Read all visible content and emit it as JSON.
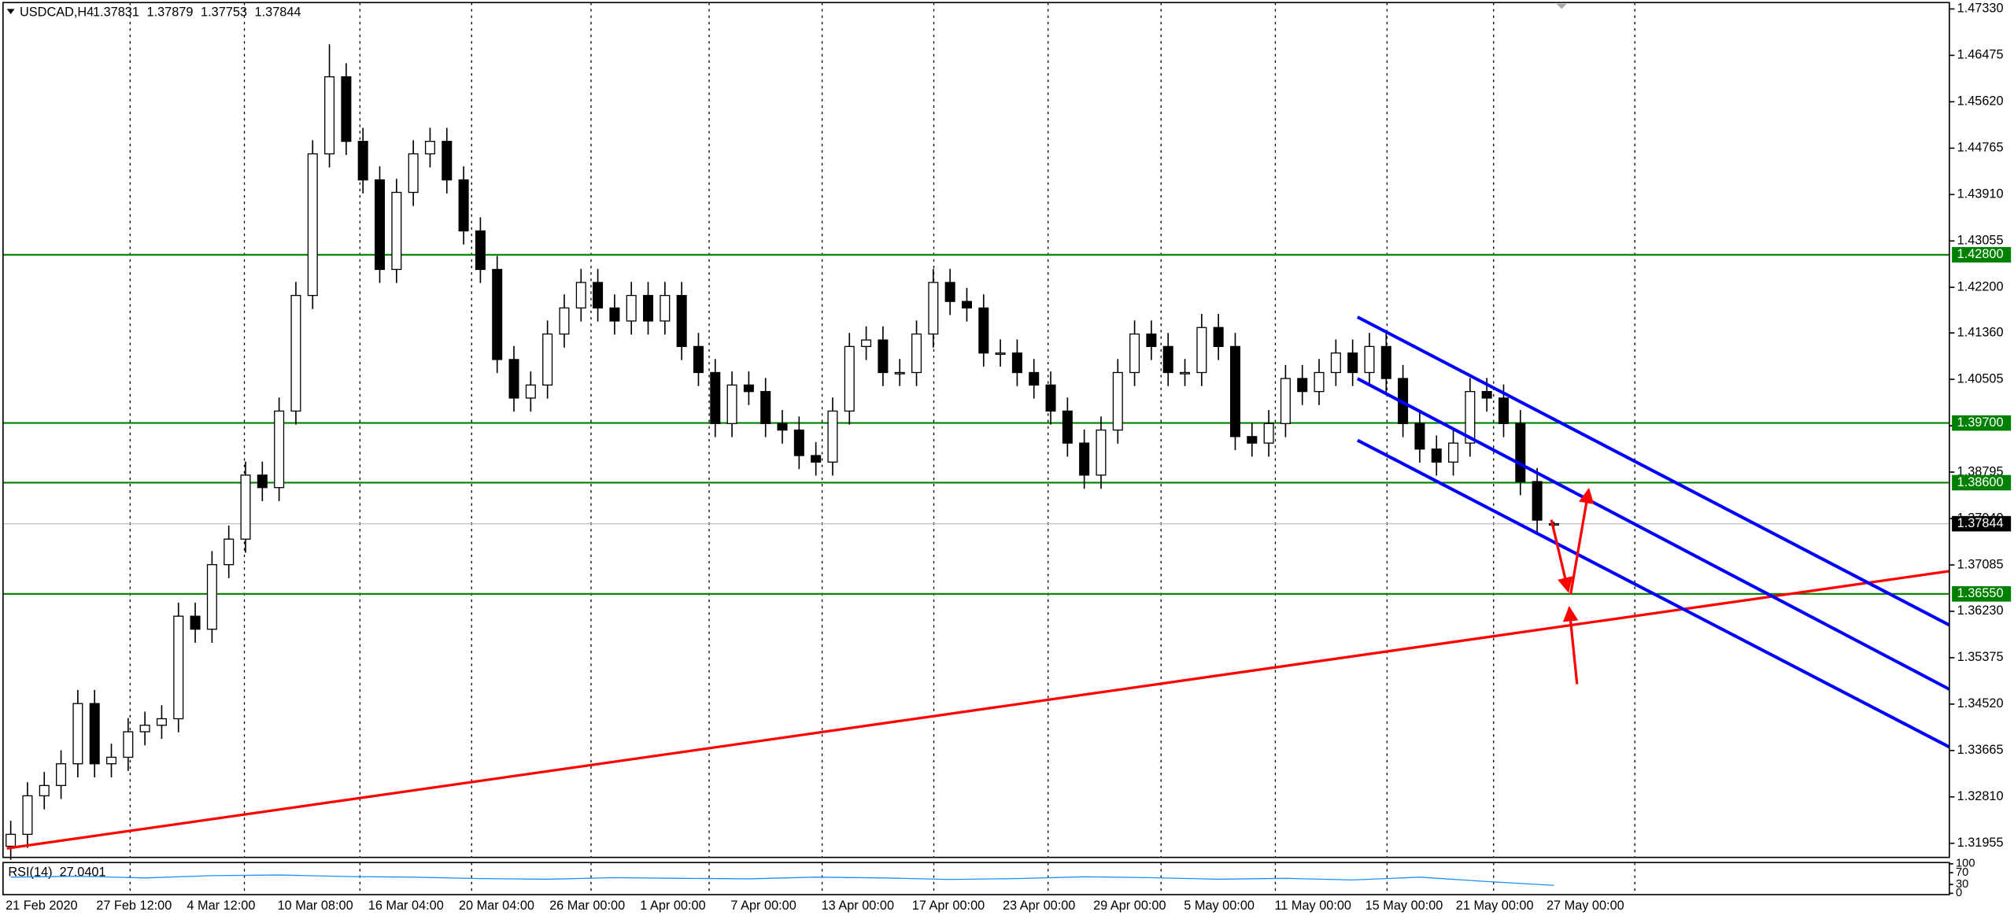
{
  "chart_data": {
    "type": "candlestick",
    "symbol": "USDCAD,H4",
    "open": [
      1.319,
      1.3212,
      1.3283,
      1.3302,
      1.3342,
      1.3453,
      1.3342,
      1.3354,
      1.3401,
      1.3413,
      1.3425,
      1.3614,
      1.359,
      1.3709,
      1.3756,
      1.3874,
      1.3851,
      1.3992,
      1.4205,
      1.4466,
      1.4608,
      1.4489,
      1.4418,
      1.4253,
      1.4395,
      1.4466,
      1.4489,
      1.4418,
      1.4324,
      1.4253,
      1.4087,
      1.4016,
      1.404,
      1.4134,
      1.4182,
      1.4229,
      1.4182,
      1.4158,
      1.4205,
      1.4158,
      1.4205,
      1.4111,
      1.4063,
      1.3969,
      1.404,
      1.4028,
      1.3969,
      1.3957,
      1.391,
      1.3898,
      1.3992,
      1.4111,
      1.4123,
      1.4063,
      1.4063,
      1.4134,
      1.4229,
      1.4194,
      1.4182,
      1.4099,
      1.4099,
      1.4063,
      1.404,
      1.3992,
      1.3933,
      1.3874,
      1.3957,
      1.4063,
      1.4134,
      1.4111,
      1.4063,
      1.4063,
      1.4146,
      1.4111,
      1.3945,
      1.3933,
      1.3969,
      1.4052,
      1.4028,
      1.4063,
      1.4099,
      1.4063,
      1.4111,
      1.4052,
      1.3969,
      1.3922,
      1.3898,
      1.3933,
      1.4028,
      1.4016,
      1.3969,
      1.3862,
      1.37831
    ],
    "high": [
      1.3237,
      1.3308,
      1.3327,
      1.3367,
      1.3478,
      1.3478,
      1.3379,
      1.3426,
      1.3438,
      1.345,
      1.3639,
      1.3639,
      1.3734,
      1.3781,
      1.3899,
      1.3899,
      1.4017,
      1.423,
      1.4491,
      1.4668,
      1.4633,
      1.4514,
      1.4443,
      1.442,
      1.4491,
      1.4514,
      1.4514,
      1.4443,
      1.4349,
      1.4278,
      1.4112,
      1.4065,
      1.4159,
      1.4207,
      1.4254,
      1.4254,
      1.4207,
      1.423,
      1.423,
      1.423,
      1.423,
      1.4136,
      1.4088,
      1.4065,
      1.4065,
      1.4053,
      1.3994,
      1.3982,
      1.3935,
      1.4017,
      1.4136,
      1.4148,
      1.4148,
      1.4088,
      1.4159,
      1.4254,
      1.4254,
      1.4219,
      1.4207,
      1.4124,
      1.4124,
      1.4088,
      1.4065,
      1.4017,
      1.3958,
      1.3982,
      1.4088,
      1.4159,
      1.4159,
      1.4136,
      1.4088,
      1.4171,
      1.4171,
      1.4136,
      1.397,
      1.3994,
      1.4077,
      1.4077,
      1.4088,
      1.4124,
      1.4124,
      1.4136,
      1.4136,
      1.4077,
      1.3994,
      1.3947,
      1.3958,
      1.4053,
      1.4053,
      1.4041,
      1.3994,
      1.3887,
      1.37879
    ],
    "low": [
      1.3165,
      1.3187,
      1.3258,
      1.3277,
      1.3317,
      1.3317,
      1.3317,
      1.3329,
      1.3376,
      1.3388,
      1.34,
      1.3565,
      1.3565,
      1.3684,
      1.3731,
      1.3826,
      1.3826,
      1.3967,
      1.418,
      1.4441,
      1.4464,
      1.4393,
      1.4228,
      1.4228,
      1.437,
      1.4441,
      1.4393,
      1.4299,
      1.4228,
      1.4062,
      1.3991,
      1.3991,
      1.4015,
      1.4109,
      1.4157,
      1.4157,
      1.4133,
      1.4133,
      1.4133,
      1.4133,
      1.4086,
      1.4038,
      1.3944,
      1.3944,
      1.4003,
      1.3944,
      1.3932,
      1.3885,
      1.3873,
      1.3873,
      1.3967,
      1.4086,
      1.4038,
      1.4038,
      1.4038,
      1.4109,
      1.4169,
      1.4157,
      1.4074,
      1.4074,
      1.4038,
      1.4015,
      1.3967,
      1.3908,
      1.3849,
      1.3849,
      1.3932,
      1.4038,
      1.4086,
      1.4038,
      1.4038,
      1.4038,
      1.4086,
      1.392,
      1.3908,
      1.3908,
      1.3944,
      1.4003,
      1.4003,
      1.4038,
      1.4038,
      1.4038,
      1.4027,
      1.3944,
      1.3897,
      1.3873,
      1.3873,
      1.3908,
      1.3991,
      1.3944,
      1.3837,
      1.3766,
      1.37753
    ],
    "close": [
      1.3212,
      1.3283,
      1.3302,
      1.3342,
      1.3453,
      1.3342,
      1.3354,
      1.3401,
      1.3413,
      1.3425,
      1.3614,
      1.359,
      1.3709,
      1.3756,
      1.3874,
      1.3851,
      1.3992,
      1.4205,
      1.4466,
      1.4608,
      1.4489,
      1.4418,
      1.4253,
      1.4395,
      1.4466,
      1.4489,
      1.4418,
      1.4324,
      1.4253,
      1.4087,
      1.4016,
      1.404,
      1.4134,
      1.4182,
      1.4229,
      1.4182,
      1.4158,
      1.4205,
      1.4158,
      1.4205,
      1.4111,
      1.4063,
      1.3969,
      1.404,
      1.4028,
      1.3969,
      1.3957,
      1.391,
      1.3898,
      1.3992,
      1.4111,
      1.4123,
      1.4063,
      1.4063,
      1.4134,
      1.4229,
      1.4194,
      1.4182,
      1.4099,
      1.4099,
      1.4063,
      1.404,
      1.3992,
      1.3933,
      1.3874,
      1.3957,
      1.4063,
      1.4134,
      1.4111,
      1.4063,
      1.4063,
      1.4146,
      1.4111,
      1.3945,
      1.3933,
      1.3969,
      1.4052,
      1.4028,
      1.4063,
      1.4099,
      1.4063,
      1.4111,
      1.4052,
      1.3969,
      1.3922,
      1.3898,
      1.3933,
      1.4028,
      1.4016,
      1.3969,
      1.3862,
      1.3791,
      1.37844
    ],
    "up_color": "#ffffff",
    "down_color": "#000000",
    "ylim": [
      1.31695,
      1.47448
    ],
    "yticks": [
      {
        "value": 1.4733,
        "label": "1.47330"
      },
      {
        "value": 1.46475,
        "label": "1.46475"
      },
      {
        "value": 1.4562,
        "label": "1.45620"
      },
      {
        "value": 1.44765,
        "label": "1.44765"
      },
      {
        "value": 1.4391,
        "label": "1.43910"
      },
      {
        "value": 1.43055,
        "label": "1.43055"
      },
      {
        "value": 1.422,
        "label": "1.42200"
      },
      {
        "value": 1.4136,
        "label": "1.41360"
      },
      {
        "value": 1.40505,
        "label": "1.40505"
      },
      {
        "value": 1.3965,
        "label": "1.39650"
      },
      {
        "value": 1.38795,
        "label": "1.38795"
      },
      {
        "value": 1.3794,
        "label": "1.37940"
      },
      {
        "value": 1.37085,
        "label": "1.37085"
      },
      {
        "value": 1.3623,
        "label": "1.36230"
      },
      {
        "value": 1.35375,
        "label": "1.35375"
      },
      {
        "value": 1.3452,
        "label": "1.34520"
      },
      {
        "value": 1.33665,
        "label": "1.33665"
      },
      {
        "value": 1.3281,
        "label": "1.32810"
      },
      {
        "value": 1.31955,
        "label": "1.31955"
      }
    ],
    "levels": [
      {
        "value": 1.428,
        "label": "1.42800"
      },
      {
        "value": 1.397,
        "label": "1.39700"
      },
      {
        "value": 1.386,
        "label": "1.38600"
      },
      {
        "value": 1.3655,
        "label": "1.36550"
      }
    ],
    "level_color": "#008000",
    "x_labels": [
      "21 Feb 2020",
      "27 Feb 12:00",
      "4 Mar 12:00",
      "10 Mar 08:00",
      "16 Mar 04:00",
      "20 Mar 04:00",
      "26 Mar 00:00",
      "1 Apr 00:00",
      "7 Apr 00:00",
      "13 Apr 00:00",
      "17 Apr 00:00",
      "23 Apr 00:00",
      "29 Apr 00:00",
      "5 May 00:00",
      "11 May 00:00",
      "15 May 00:00",
      "21 May 00:00",
      "27 May 00:00"
    ],
    "indicator": {
      "label": "RSI(14)",
      "color": "#1e90ff",
      "values": [
        55,
        58,
        52,
        60,
        62,
        57,
        55,
        50,
        48,
        53,
        51,
        49,
        55,
        52,
        47,
        50,
        56,
        53,
        48,
        51,
        45,
        55,
        40,
        27.0401
      ],
      "ylim": [
        0,
        100
      ],
      "yticks": [
        0,
        30,
        70,
        100
      ]
    }
  }
}
